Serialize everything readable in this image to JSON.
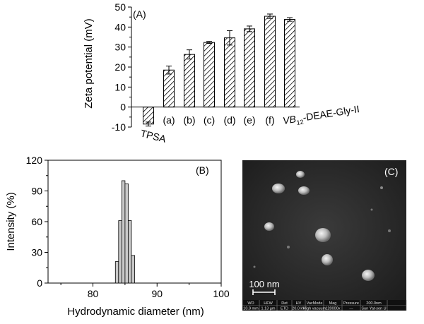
{
  "chart_data": [
    {
      "type": "bar",
      "panel_label": "(A)",
      "ylabel": "Zeta potential (mV)",
      "ylim": [
        -10,
        50
      ],
      "yticks": [
        -10,
        0,
        10,
        20,
        30,
        40,
        50
      ],
      "categories": [
        "TPSA",
        "(a)",
        "(b)",
        "(c)",
        "(d)",
        "(e)",
        "(f)",
        "VB12-DEAE-Gly-II"
      ],
      "values": [
        -8.5,
        18.5,
        26.3,
        32.3,
        34.6,
        39.1,
        45.4,
        43.8
      ],
      "errors": [
        1.0,
        2.0,
        2.3,
        0.5,
        3.6,
        1.4,
        1.1,
        0.9
      ],
      "label_display": {
        "vb_main": "VB",
        "vb_sub": "12",
        "vb_rest": "-DEAE-Gly-II"
      },
      "fill": "hatched",
      "grid": false
    },
    {
      "type": "bar",
      "panel_label": "(B)",
      "xlabel": "Hydrodynamic diameter (nm)",
      "ylabel": "Intensity (%)",
      "xlim": [
        73,
        100
      ],
      "ylim": [
        0,
        120
      ],
      "xticks": [
        80,
        90,
        100
      ],
      "yticks": [
        0,
        30,
        60,
        90,
        120
      ],
      "bin_width": 0.5,
      "x": [
        83.75,
        84.25,
        84.75,
        85.25,
        85.75,
        86.25
      ],
      "values": [
        21,
        61,
        100,
        97,
        61,
        27
      ],
      "bar_color": "#c8c8c8",
      "grid": false
    }
  ],
  "sem_image": {
    "panel_label": "(C)",
    "scale_bar_label": "100 nm",
    "info_bar": {
      "headers": [
        "WD",
        "HFW",
        "Det",
        "HV",
        "VacMode",
        "Mag",
        "Pressure",
        "200.0nm",
        ""
      ],
      "values": [
        "10.9 mm",
        "1.13 µm",
        "ETD",
        "20.0 kV",
        "High vacuum",
        "120000x",
        "---",
        "Sun Yat-sen U",
        ""
      ]
    }
  }
}
